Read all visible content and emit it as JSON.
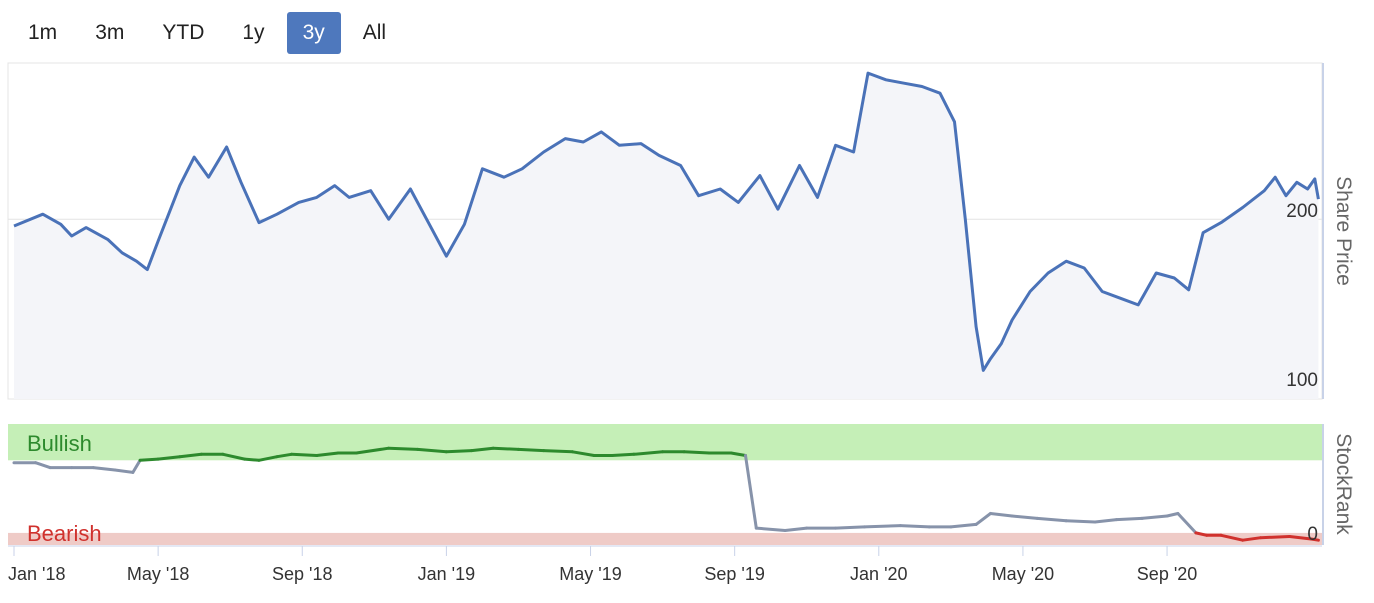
{
  "range_selector": {
    "buttons": [
      {
        "label": "1m",
        "active": false
      },
      {
        "label": "3m",
        "active": false
      },
      {
        "label": "YTD",
        "active": false
      },
      {
        "label": "1y",
        "active": false
      },
      {
        "label": "3y",
        "active": true
      },
      {
        "label": "All",
        "active": false
      }
    ]
  },
  "colors": {
    "price_line": "#4a72b8",
    "price_fill": "#f4f5f9",
    "bullish_zone": "#c5efb7",
    "bearish_zone": "#efcbc7",
    "bullish_text": "#2d8a2d",
    "bearish_text": "#d0312d",
    "rank_neutral": "#8793aa",
    "rank_bullish": "#2d8a2d",
    "rank_bearish": "#d0312d"
  },
  "chart_data": [
    {
      "type": "line",
      "name": "price-chart",
      "ylabel": "Share Price",
      "yticks": [
        100,
        200
      ],
      "ylim": [
        93,
        293
      ],
      "xlim": [
        0,
        36.3
      ],
      "x_tick_labels": [
        "Jan '18",
        "May '18",
        "Sep '18",
        "Jan '19",
        "May '19",
        "Sep '19",
        "Jan '20",
        "May '20",
        "Sep '20"
      ],
      "x_tick_positions": [
        0,
        4,
        8,
        12,
        16,
        20,
        24,
        28,
        32
      ],
      "series": [
        {
          "name": "Share Price",
          "x": [
            0,
            0.8,
            1.3,
            1.6,
            2.0,
            2.6,
            3.0,
            3.4,
            3.7,
            4.0,
            4.6,
            5.0,
            5.4,
            5.9,
            6.3,
            6.8,
            7.3,
            7.9,
            8.4,
            8.9,
            9.3,
            9.9,
            10.4,
            11.0,
            11.5,
            12.0,
            12.5,
            13.0,
            13.6,
            14.1,
            14.7,
            15.3,
            15.8,
            16.3,
            16.8,
            17.4,
            17.9,
            18.5,
            19.0,
            19.6,
            20.1,
            20.7,
            21.2,
            21.8,
            22.3,
            22.8,
            23.3,
            23.7,
            24.2,
            24.7,
            25.2,
            25.7,
            26.1,
            26.4,
            26.7,
            26.9,
            27.1,
            27.4,
            27.7,
            28.2,
            28.7,
            29.2,
            29.7,
            30.2,
            30.7,
            31.2,
            31.7,
            32.2,
            32.6,
            33.0,
            33.5,
            34.1,
            34.7,
            35.0,
            35.3,
            35.6,
            35.9,
            36.1,
            36.2
          ],
          "values": [
            196,
            203,
            197,
            190,
            195,
            188,
            180,
            175,
            170,
            187,
            220,
            237,
            225,
            243,
            222,
            198,
            203,
            210,
            213,
            220,
            213,
            217,
            200,
            218,
            198,
            178,
            197,
            230,
            225,
            230,
            240,
            248,
            246,
            252,
            244,
            245,
            238,
            232,
            214,
            218,
            210,
            226,
            206,
            232,
            213,
            244,
            240,
            287,
            283,
            281,
            279,
            275,
            258,
            200,
            136,
            110,
            117,
            126,
            140,
            157,
            168,
            175,
            171,
            157,
            153,
            149,
            168,
            165,
            158,
            192,
            198,
            207,
            217,
            225,
            214,
            222,
            218,
            224,
            212
          ]
        }
      ]
    },
    {
      "type": "line",
      "name": "stockrank-chart",
      "ylabel": "StockRank",
      "yticks": [
        0
      ],
      "ylim": [
        0,
        100
      ],
      "zones": [
        {
          "label": "Bullish",
          "from": 70,
          "to": 100
        },
        {
          "label": "Bearish",
          "from": 0,
          "to": 10
        }
      ],
      "series": [
        {
          "name": "StockRank",
          "x": [
            0,
            0.6,
            1.0,
            1.6,
            2.2,
            2.8,
            3.3,
            3.5,
            4.0,
            4.6,
            5.2,
            5.8,
            6.4,
            6.8,
            7.3,
            7.7,
            8.4,
            9.0,
            9.5,
            10.4,
            11.2,
            12.0,
            12.7,
            13.3,
            14.0,
            14.7,
            15.5,
            16.1,
            16.6,
            17.2,
            18.0,
            18.6,
            19.3,
            19.9,
            20.3,
            20.6,
            21.4,
            22.0,
            22.8,
            23.6,
            24.6,
            25.4,
            26.0,
            26.7,
            27.1,
            27.7,
            28.4,
            29.2,
            30.0,
            30.6,
            31.3,
            32.0,
            32.3,
            32.8,
            33.1,
            33.5,
            34.1,
            34.6,
            35.4,
            36.0,
            36.2
          ],
          "values": [
            68,
            68,
            64,
            64,
            64,
            62,
            60,
            70,
            71,
            73,
            75,
            75,
            71,
            70,
            73,
            75,
            74,
            76,
            76,
            80,
            79,
            77,
            78,
            80,
            79,
            78,
            77,
            74,
            74,
            75,
            77,
            77,
            76,
            76,
            74,
            14,
            12,
            14,
            14,
            15,
            16,
            15,
            15,
            17,
            26,
            24,
            22,
            20,
            19,
            21,
            22,
            24,
            26,
            10,
            8,
            8,
            4,
            6,
            7,
            5,
            4
          ]
        }
      ]
    }
  ]
}
